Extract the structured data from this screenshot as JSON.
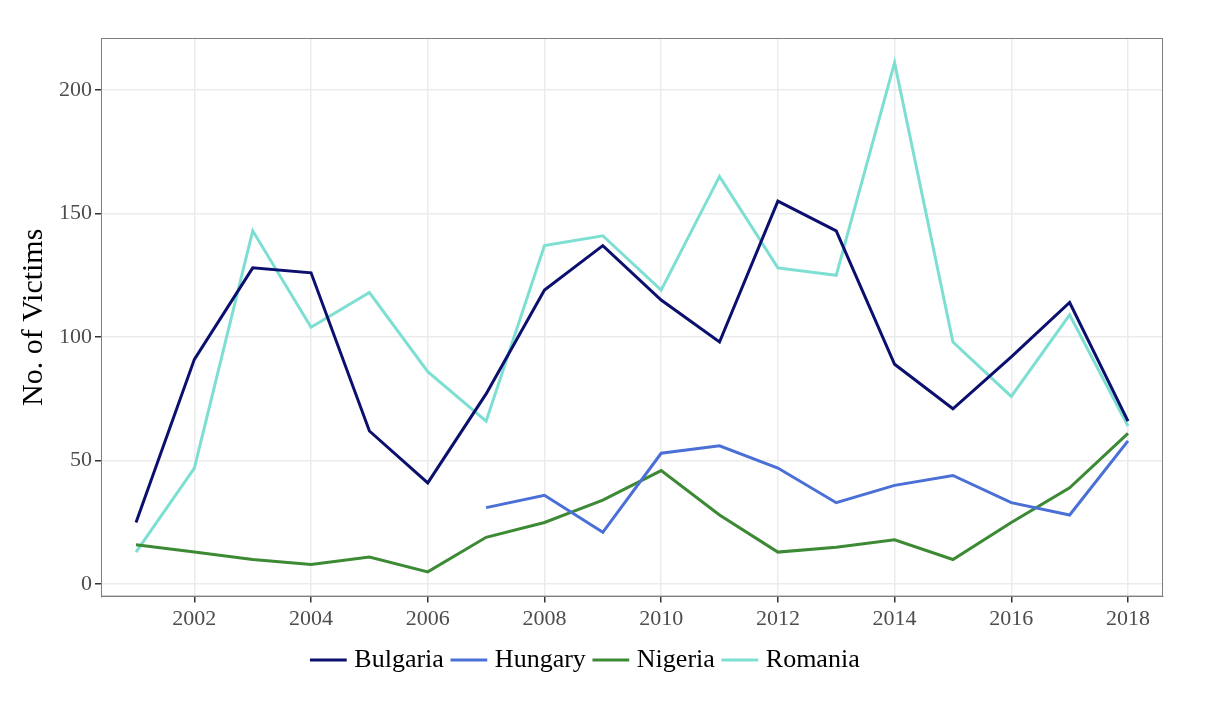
{
  "chart_data": {
    "type": "line",
    "y_label": "No. of Victims",
    "x": [
      2001,
      2002,
      2003,
      2004,
      2005,
      2006,
      2007,
      2008,
      2009,
      2010,
      2011,
      2012,
      2013,
      2014,
      2015,
      2016,
      2017,
      2018
    ],
    "series": [
      {
        "name": "Bulgaria",
        "color": "#0b0f6e",
        "values": [
          25,
          91,
          128,
          126,
          62,
          41,
          77,
          119,
          137,
          115,
          98,
          155,
          143,
          89,
          71,
          92,
          114,
          66
        ]
      },
      {
        "name": "Hungary",
        "color": "#4a6fd6",
        "values": [
          null,
          null,
          null,
          null,
          null,
          null,
          31,
          36,
          21,
          53,
          56,
          47,
          33,
          40,
          44,
          33,
          28,
          58
        ]
      },
      {
        "name": "Nigeria",
        "color": "#3d8a35",
        "values": [
          16,
          13,
          10,
          8,
          11,
          5,
          19,
          25,
          34,
          46,
          28,
          13,
          15,
          18,
          10,
          25,
          39,
          61
        ]
      },
      {
        "name": "Romania",
        "color": "#7ddfd2",
        "values": [
          13,
          47,
          143,
          104,
          118,
          86,
          66,
          137,
          141,
          119,
          165,
          128,
          125,
          211,
          98,
          76,
          109,
          64
        ]
      }
    ],
    "xlim": [
      2000.4,
      2018.6
    ],
    "xticks": [
      2002,
      2004,
      2006,
      2008,
      2010,
      2012,
      2014,
      2016,
      2018
    ],
    "ylim": [
      -5,
      221
    ],
    "yticks": [
      0,
      50,
      100,
      150,
      200
    ],
    "grid": true,
    "legend": "bottom"
  }
}
